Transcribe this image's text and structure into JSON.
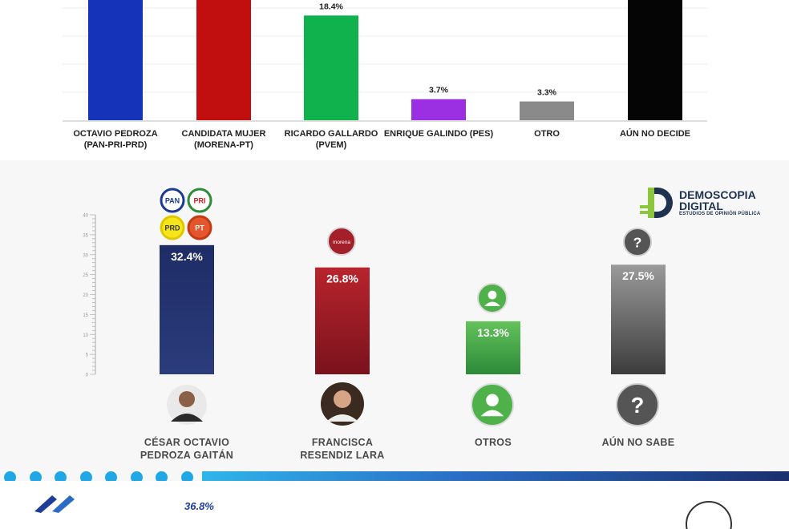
{
  "chart_data": [
    {
      "type": "bar",
      "categories": [
        "OCTAVIO PEDROZA\n(PAN-PRI-PRD)",
        "CANDIDATA MUJER\n(MORENA-PT)",
        "RICARDO GALLARDO\n(PVEM)",
        "ENRIQUE GALINDO (PES)",
        "OTRO",
        "AÚN NO DECIDE"
      ],
      "values": [
        null,
        null,
        18.4,
        3.7,
        3.3,
        null
      ],
      "value_labels": [
        "",
        "",
        "18.4%",
        "3.7%",
        "3.3%",
        ""
      ],
      "colors": [
        "#1433b8",
        "#c10f0f",
        "#0fb24c",
        "#9b30e3",
        "#8a8a8a",
        "#050505"
      ],
      "grid": true
    },
    {
      "type": "bar",
      "categories": [
        "CÉSAR OCTAVIO\nPEDROZA GAITÁN",
        "FRANCISCA\nRESENDIZ LARA",
        "OTROS",
        "AÚN NO SABE"
      ],
      "values": [
        32.4,
        26.8,
        13.3,
        27.5
      ],
      "value_labels": [
        "32.4%",
        "26.8%",
        "13.3%",
        "27.5%"
      ],
      "colors": [
        "#25356f",
        "#a3202a",
        "#4fb14a",
        "#8a8a8a"
      ],
      "ylim": [
        0,
        40
      ],
      "yticks": [
        "0",
        "5",
        "10",
        "15",
        "20",
        "25",
        "30",
        "35",
        "40"
      ],
      "grid": false
    }
  ],
  "logo": {
    "line1": "DEMOSCOPIA",
    "line2": "DIGITAL",
    "tagline": "ESTUDIOS DE OPINIÓN PÚBLICA",
    "color": "#1f3350",
    "accent": "#8cc63f"
  },
  "party_badges": {
    "pan": "PAN",
    "pri": "PRI",
    "prd": "PRD",
    "pt": "PT",
    "morena": "morena"
  },
  "question_mark": "?",
  "bottom_value": "36.8%",
  "colors": {
    "band_dark": "#1a2f6e",
    "band_light": "#2fb5ea",
    "dots": "#20a8e6"
  }
}
